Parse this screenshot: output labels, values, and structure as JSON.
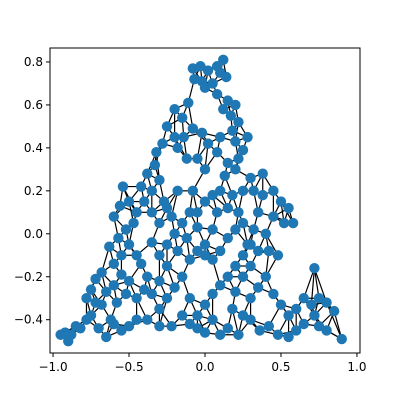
{
  "chart_data": {
    "type": "scatter",
    "subtype": "network-graph",
    "title": "",
    "xlabel": "",
    "ylabel": "",
    "xlim": [
      -1.02,
      1.02
    ],
    "ylim": [
      -0.555,
      0.865
    ],
    "x_ticks": [
      -1.0,
      -0.5,
      0.0,
      0.5,
      1.0
    ],
    "x_tick_labels": [
      "−1.0",
      "−0.5",
      "0.0",
      "0.5",
      "1.0"
    ],
    "y_ticks": [
      -0.4,
      -0.2,
      0.0,
      0.2,
      0.4,
      0.6,
      0.8
    ],
    "y_tick_labels": [
      "−0.4",
      "−0.2",
      "0.0",
      "0.2",
      "0.4",
      "0.6",
      "0.8"
    ],
    "grid": false,
    "legend": "none",
    "node_color": "#1f77b4",
    "edge_color": "#000000",
    "nodes": [
      [
        -0.08,
        0.77
      ],
      [
        -0.03,
        0.78
      ],
      [
        0.02,
        0.76
      ],
      [
        0.08,
        0.78
      ],
      [
        0.1,
        0.75
      ],
      [
        -0.07,
        0.72
      ],
      [
        -0.02,
        0.71
      ],
      [
        0.0,
        0.68
      ],
      [
        0.05,
        0.7
      ],
      [
        0.12,
        0.81
      ],
      [
        0.14,
        0.73
      ],
      [
        0.08,
        0.65
      ],
      [
        0.15,
        0.62
      ],
      [
        0.12,
        0.58
      ],
      [
        0.2,
        0.6
      ],
      [
        0.17,
        0.55
      ],
      [
        0.22,
        0.52
      ],
      [
        0.18,
        0.48
      ],
      [
        -0.2,
        0.58
      ],
      [
        -0.15,
        0.54
      ],
      [
        -0.11,
        0.61
      ],
      [
        -0.25,
        0.5
      ],
      [
        -0.2,
        0.45
      ],
      [
        -0.28,
        0.42
      ],
      [
        -0.32,
        0.38
      ],
      [
        -0.14,
        0.45
      ],
      [
        -0.08,
        0.49
      ],
      [
        -0.02,
        0.47
      ],
      [
        0.02,
        0.42
      ],
      [
        -0.18,
        0.4
      ],
      [
        -0.12,
        0.35
      ],
      [
        0.2,
        0.43
      ],
      [
        0.25,
        0.39
      ],
      [
        0.22,
        0.35
      ],
      [
        0.15,
        0.33
      ],
      [
        0.13,
        0.27
      ],
      [
        0.2,
        0.3
      ],
      [
        0.28,
        0.45
      ],
      [
        0.3,
        0.26
      ],
      [
        -0.33,
        0.32
      ],
      [
        -0.38,
        0.28
      ],
      [
        -0.3,
        0.25
      ],
      [
        -0.35,
        0.2
      ],
      [
        -0.42,
        0.22
      ],
      [
        -0.27,
        0.15
      ],
      [
        -0.4,
        0.15
      ],
      [
        -0.45,
        0.1
      ],
      [
        -0.5,
        0.15
      ],
      [
        -0.47,
        0.05
      ],
      [
        -0.54,
        0.22
      ],
      [
        -0.56,
        0.13
      ],
      [
        -0.6,
        0.08
      ],
      [
        -0.52,
        0.02
      ],
      [
        -0.57,
        -0.02
      ],
      [
        -0.63,
        -0.06
      ],
      [
        -0.5,
        -0.05
      ],
      [
        -0.45,
        -0.1
      ],
      [
        -0.55,
        -0.1
      ],
      [
        -0.6,
        -0.14
      ],
      [
        -0.68,
        -0.18
      ],
      [
        -0.55,
        -0.19
      ],
      [
        -0.5,
        -0.22
      ],
      [
        -0.6,
        -0.24
      ],
      [
        -0.65,
        -0.27
      ],
      [
        -0.72,
        -0.21
      ],
      [
        -0.75,
        -0.26
      ],
      [
        -0.78,
        -0.3
      ],
      [
        -0.68,
        -0.33
      ],
      [
        -0.58,
        -0.32
      ],
      [
        -0.52,
        -0.28
      ],
      [
        -0.45,
        -0.3
      ],
      [
        -0.4,
        -0.26
      ],
      [
        -0.38,
        -0.2
      ],
      [
        -0.42,
        -0.14
      ],
      [
        -0.35,
        -0.04
      ],
      [
        -0.3,
        -0.1
      ],
      [
        -0.25,
        -0.05
      ],
      [
        -0.2,
        0.0
      ],
      [
        -0.15,
        0.05
      ],
      [
        -0.1,
        0.1
      ],
      [
        -0.22,
        0.08
      ],
      [
        -0.3,
        0.05
      ],
      [
        -0.35,
        0.1
      ],
      [
        -0.12,
        -0.02
      ],
      [
        -0.05,
        0.03
      ],
      [
        0.0,
        -0.05
      ],
      [
        0.05,
        0.02
      ],
      [
        0.08,
        0.1
      ],
      [
        0.1,
        0.2
      ],
      [
        0.05,
        0.18
      ],
      [
        0.0,
        0.15
      ],
      [
        -0.05,
        0.1
      ],
      [
        0.15,
        0.12
      ],
      [
        0.18,
        0.18
      ],
      [
        0.22,
        0.1
      ],
      [
        0.25,
        0.05
      ],
      [
        0.2,
        0.02
      ],
      [
        0.15,
        -0.02
      ],
      [
        0.1,
        -0.08
      ],
      [
        0.05,
        -0.12
      ],
      [
        0.0,
        -0.1
      ],
      [
        -0.05,
        -0.08
      ],
      [
        -0.1,
        -0.12
      ],
      [
        -0.18,
        -0.08
      ],
      [
        -0.25,
        -0.15
      ],
      [
        -0.3,
        -0.22
      ],
      [
        -0.35,
        -0.28
      ],
      [
        -0.3,
        -0.35
      ],
      [
        -0.25,
        -0.3
      ],
      [
        -0.2,
        -0.25
      ],
      [
        -0.15,
        -0.2
      ],
      [
        -0.1,
        -0.3
      ],
      [
        -0.05,
        -0.38
      ],
      [
        0.0,
        -0.33
      ],
      [
        0.05,
        -0.28
      ],
      [
        0.1,
        -0.24
      ],
      [
        0.15,
        -0.2
      ],
      [
        0.2,
        -0.15
      ],
      [
        0.25,
        -0.1
      ],
      [
        0.3,
        -0.05
      ],
      [
        0.32,
        0.02
      ],
      [
        0.35,
        0.1
      ],
      [
        0.38,
        0.18
      ],
      [
        0.45,
        0.2
      ],
      [
        0.5,
        0.15
      ],
      [
        0.55,
        0.12
      ],
      [
        0.58,
        0.05
      ],
      [
        0.52,
        0.05
      ],
      [
        0.45,
        0.08
      ],
      [
        0.4,
        0.0
      ],
      [
        0.35,
        -0.08
      ],
      [
        0.3,
        -0.15
      ],
      [
        0.25,
        -0.2
      ],
      [
        0.2,
        -0.27
      ],
      [
        0.18,
        -0.35
      ],
      [
        0.25,
        -0.38
      ],
      [
        0.3,
        -0.3
      ],
      [
        0.35,
        -0.25
      ],
      [
        0.4,
        -0.2
      ],
      [
        0.45,
        -0.28
      ],
      [
        0.5,
        -0.33
      ],
      [
        0.55,
        -0.38
      ],
      [
        0.6,
        -0.35
      ],
      [
        0.65,
        -0.3
      ],
      [
        0.7,
        -0.33
      ],
      [
        0.72,
        -0.16
      ],
      [
        0.75,
        -0.3
      ],
      [
        0.8,
        -0.32
      ],
      [
        0.85,
        -0.36
      ],
      [
        0.9,
        -0.49
      ],
      [
        0.8,
        -0.45
      ],
      [
        0.75,
        -0.43
      ],
      [
        0.72,
        -0.38
      ],
      [
        0.65,
        -0.42
      ],
      [
        0.6,
        -0.45
      ],
      [
        0.55,
        -0.48
      ],
      [
        0.48,
        -0.47
      ],
      [
        0.42,
        -0.43
      ],
      [
        0.36,
        -0.45
      ],
      [
        0.3,
        -0.4
      ],
      [
        0.22,
        -0.47
      ],
      [
        0.15,
        -0.44
      ],
      [
        0.1,
        -0.47
      ],
      [
        0.05,
        -0.4
      ],
      [
        0.0,
        -0.46
      ],
      [
        -0.05,
        -0.44
      ],
      [
        -0.1,
        -0.42
      ],
      [
        -0.15,
        -0.38
      ],
      [
        -0.22,
        -0.43
      ],
      [
        -0.3,
        -0.43
      ],
      [
        -0.38,
        -0.4
      ],
      [
        -0.45,
        -0.4
      ],
      [
        -0.5,
        -0.43
      ],
      [
        -0.55,
        -0.45
      ],
      [
        -0.6,
        -0.42
      ],
      [
        -0.65,
        -0.48
      ],
      [
        -0.7,
        -0.44
      ],
      [
        -0.75,
        -0.38
      ],
      [
        -0.82,
        -0.44
      ],
      [
        -0.88,
        -0.47
      ],
      [
        -0.92,
        -0.46
      ],
      [
        -0.95,
        -0.47
      ],
      [
        -0.9,
        -0.5
      ],
      [
        -0.85,
        -0.43
      ],
      [
        -0.78,
        -0.4
      ],
      [
        -0.72,
        -0.32
      ],
      [
        -0.62,
        -0.4
      ],
      [
        0.28,
        -0.05
      ],
      [
        0.42,
        -0.08
      ],
      [
        0.48,
        -0.1
      ],
      [
        0.38,
        0.28
      ],
      [
        0.32,
        0.2
      ],
      [
        0.25,
        0.2
      ],
      [
        -0.25,
        0.12
      ],
      [
        -0.18,
        0.2
      ],
      [
        -0.08,
        0.2
      ],
      [
        0.0,
        0.3
      ],
      [
        -0.05,
        0.35
      ],
      [
        0.08,
        0.38
      ],
      [
        0.1,
        0.45
      ]
    ]
  }
}
